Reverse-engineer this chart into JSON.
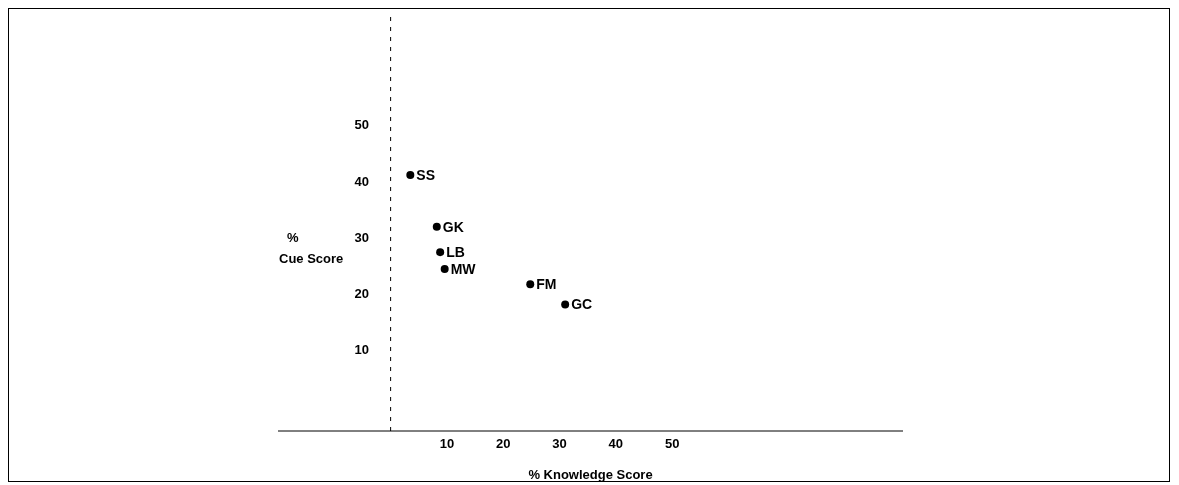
{
  "chart_data": {
    "type": "scatter",
    "xlabel": "%   Knowledge Score",
    "ylabel": "%\nCue Score",
    "series": [
      {
        "color": "#000000",
        "x": [
          3.5,
          8.2,
          8.8,
          9.6,
          24.8,
          31
        ],
        "values": [
          41,
          31.8,
          27.3,
          24.3,
          21.6,
          18
        ]
      }
    ],
    "marker": "circle",
    "xlim": [
      -20,
      91
    ],
    "ylim": [
      -4.5,
      70
    ],
    "xticks": [
      10,
      20,
      30,
      40,
      50
    ],
    "yticks": [
      10,
      20,
      30,
      40,
      50
    ],
    "ref_lines": [
      {
        "axis": "x",
        "value": 0,
        "line_style": "dashed"
      }
    ],
    "annotations": [
      {
        "text": "SS",
        "x": 3.5,
        "y": 41
      },
      {
        "text": "GK",
        "x": 8.2,
        "y": 31.8
      },
      {
        "text": "LB",
        "x": 8.8,
        "y": 27.3
      },
      {
        "text": "MW",
        "x": 9.6,
        "y": 24.3
      },
      {
        "text": "FM",
        "x": 24.8,
        "y": 21.6
      },
      {
        "text": "GC",
        "x": 31,
        "y": 18
      }
    ]
  }
}
